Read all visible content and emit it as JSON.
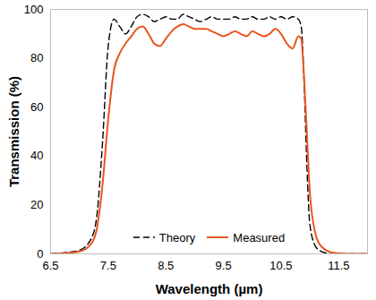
{
  "chart_data": {
    "type": "line",
    "x_label": "Wavelength (µm)",
    "y_label": "Transmission (%)",
    "x": [
      6.5,
      6.75,
      7.0,
      7.2,
      7.3,
      7.4,
      7.5,
      7.6,
      7.7,
      7.8,
      7.9,
      8.0,
      8.1,
      8.2,
      8.3,
      8.4,
      8.5,
      8.6,
      8.7,
      8.8,
      8.9,
      9.0,
      9.1,
      9.2,
      9.3,
      9.4,
      9.5,
      9.6,
      9.7,
      9.8,
      9.9,
      10.0,
      10.1,
      10.2,
      10.3,
      10.4,
      10.5,
      10.6,
      10.7,
      10.8,
      10.85,
      10.9,
      10.95,
      11.0,
      11.1,
      11.2,
      11.4,
      11.7,
      12.0
    ],
    "series": [
      {
        "name": "Theory",
        "color": "#000000",
        "line_style": "dashed",
        "values": [
          0,
          0.5,
          1.5,
          6,
          15,
          45,
          85,
          96,
          93,
          90,
          93,
          97,
          98,
          97,
          95,
          96,
          97,
          96,
          96,
          98,
          97,
          96,
          95,
          96,
          97,
          96,
          96,
          96,
          97,
          96,
          96,
          97,
          96,
          96,
          97,
          96,
          97,
          96,
          97,
          96,
          93,
          70,
          35,
          12,
          3,
          1,
          0,
          0,
          0
        ]
      },
      {
        "name": "Measured",
        "color": "#e8561e",
        "line_style": "solid",
        "values": [
          0,
          0.3,
          1,
          4,
          10,
          28,
          55,
          75,
          82,
          86,
          89,
          92,
          93,
          90,
          86,
          85,
          88,
          91,
          93,
          94,
          93,
          92,
          92,
          92,
          91,
          90,
          89,
          90,
          91,
          90,
          89,
          91,
          90,
          89,
          90,
          92,
          90,
          86,
          84,
          89,
          88,
          72,
          48,
          25,
          8,
          3,
          0.5,
          0,
          0
        ]
      }
    ],
    "xlim": [
      6.5,
      12.0
    ],
    "xticks": [
      6.5,
      7.5,
      8.5,
      9.5,
      10.5,
      11.5
    ],
    "ylim": [
      0,
      100
    ],
    "yticks": [
      0,
      20,
      40,
      60,
      80,
      100
    ],
    "grid": false,
    "legend": "bottom"
  }
}
